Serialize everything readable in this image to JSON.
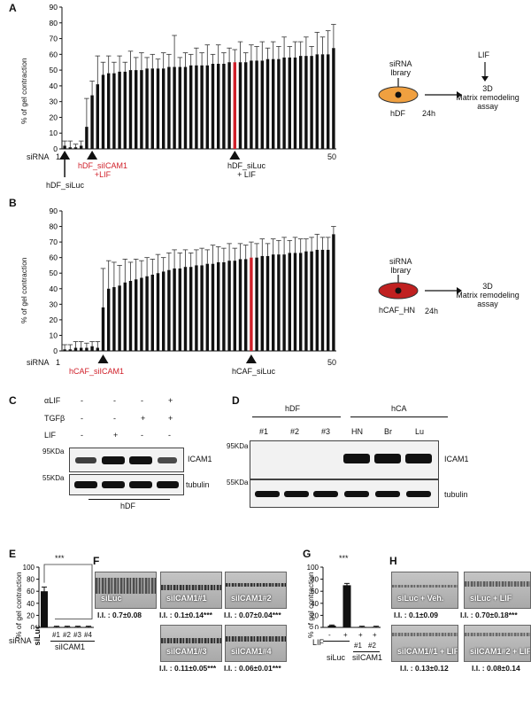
{
  "panel_letters": {
    "a": "A",
    "b": "B",
    "c": "C",
    "d": "D",
    "e": "E",
    "f": "F",
    "g": "G",
    "h": "H"
  },
  "ylabel": "% of gel contraction",
  "siRNA": "siRNA",
  "chart_data": [
    {
      "panel": "A",
      "type": "bar",
      "ylabel": "% of gel contraction",
      "ylim": [
        0,
        90
      ],
      "ticks": [
        "0",
        "10",
        "20",
        "30",
        "40",
        "50",
        "60",
        "70",
        "80",
        "90"
      ],
      "n_bars": 50,
      "x_start": "1",
      "x_end": "50",
      "values": [
        2,
        1,
        1,
        2,
        14,
        34,
        41,
        47,
        48,
        48,
        49,
        49,
        50,
        50,
        50,
        51,
        51,
        51,
        51,
        52,
        52,
        52,
        52,
        53,
        53,
        53,
        53,
        54,
        54,
        54,
        55,
        55,
        55,
        55,
        56,
        56,
        56,
        57,
        57,
        57,
        58,
        58,
        58,
        59,
        59,
        59,
        60,
        60,
        60,
        64
      ],
      "errors": [
        3,
        4,
        2,
        3,
        18,
        9,
        18,
        8,
        11,
        7,
        10,
        6,
        12,
        8,
        11,
        7,
        9,
        6,
        10,
        8,
        20,
        6,
        9,
        7,
        11,
        8,
        13,
        6,
        12,
        7,
        9,
        8,
        13,
        6,
        10,
        9,
        12,
        7,
        11,
        8,
        13,
        7,
        10,
        9,
        12,
        6,
        14,
        11,
        15,
        15
      ],
      "highlight_index": 31,
      "arrows": [
        {
          "label": "hDF_siLuc",
          "color": "#111"
        },
        {
          "label": "hDF_siICAM1\n+LIF",
          "color": "#d0202a"
        },
        {
          "label": "hDF_siLuc\n+ LIF",
          "color": "#111"
        }
      ]
    },
    {
      "panel": "B",
      "type": "bar",
      "ylabel": "% of gel contraction",
      "ylim": [
        0,
        90
      ],
      "ticks": [
        "0",
        "10",
        "20",
        "30",
        "40",
        "50",
        "60",
        "70",
        "80",
        "90"
      ],
      "n_bars": 50,
      "x_start": "1",
      "x_end": "50",
      "values": [
        1,
        1,
        2,
        2,
        2,
        3,
        2,
        28,
        40,
        41,
        42,
        44,
        45,
        46,
        47,
        48,
        49,
        50,
        51,
        52,
        53,
        53,
        54,
        54,
        55,
        55,
        56,
        56,
        57,
        57,
        58,
        58,
        59,
        59,
        60,
        60,
        61,
        61,
        62,
        62,
        62,
        63,
        63,
        63,
        64,
        64,
        65,
        65,
        65,
        75
      ],
      "errors": [
        3,
        3,
        4,
        4,
        3,
        3,
        4,
        25,
        18,
        16,
        13,
        15,
        12,
        13,
        11,
        12,
        10,
        12,
        9,
        11,
        12,
        10,
        11,
        9,
        10,
        11,
        9,
        12,
        10,
        9,
        11,
        8,
        10,
        9,
        10,
        9,
        11,
        8,
        10,
        9,
        11,
        8,
        10,
        9,
        8,
        9,
        10,
        8,
        8,
        5
      ],
      "highlight_index": 34,
      "arrows": [
        {
          "label": "hCAF_siICAM1",
          "color": "#d0202a"
        },
        {
          "label": "hCAF_siLuc",
          "color": "#111"
        }
      ]
    },
    {
      "panel": "E",
      "type": "bar",
      "ylabel": "% of gel contraction",
      "ylim": [
        0,
        100
      ],
      "ticks": [
        "0",
        "20",
        "40",
        "60",
        "80",
        "100"
      ],
      "categories": [
        "siLuc",
        "#1",
        "#2",
        "#3",
        "#4"
      ],
      "values": [
        60,
        1,
        1,
        1,
        1
      ],
      "errors": [
        7,
        1,
        1,
        1,
        1
      ],
      "group_label": "siICAM1",
      "significance": "***"
    },
    {
      "panel": "G",
      "type": "bar",
      "ylabel": "% of gel contraction",
      "ylim": [
        0,
        100
      ],
      "ticks": [
        "0",
        "20",
        "40",
        "60",
        "80",
        "100"
      ],
      "categories": [
        "-",
        "+",
        "#1 +",
        "#2 +"
      ],
      "values": [
        3,
        70,
        1,
        1
      ],
      "errors": [
        1,
        3,
        1,
        1
      ],
      "lif_row": [
        "-",
        "+",
        "+",
        "+"
      ],
      "lif_label": "LIF",
      "group_labels": [
        "siLuc",
        "siICAM1"
      ],
      "sub_labels": [
        "#1",
        "#2"
      ],
      "significance": "***"
    }
  ],
  "schematic_a": {
    "lif": "LIF",
    "sirna": "siRNA",
    "library": "lbrary",
    "cell": "hDF",
    "time": "24h",
    "assay1": "3D",
    "assay2": "Matrix remodeling",
    "assay3": "assay"
  },
  "schematic_b": {
    "sirna": "siRNA",
    "library": "lbrary",
    "cell": "hCAF_HN",
    "time": "24h",
    "assay1": "3D",
    "assay2": "Matrix remodeling",
    "assay3": "assay"
  },
  "blot_c": {
    "rows": [
      {
        "label": "αLIF",
        "vals": [
          "-",
          "-",
          "-",
          "+"
        ]
      },
      {
        "label": "TGFβ",
        "vals": [
          "-",
          "-",
          "+",
          "+"
        ]
      },
      {
        "label": "LIF",
        "vals": [
          "-",
          "+",
          "-",
          "-"
        ]
      }
    ],
    "kda1": "95KDa",
    "kda2": "55KDa",
    "band1": "ICAM1",
    "band2": "tubulin",
    "group": "hDF"
  },
  "blot_d": {
    "group1": "hDF",
    "group2": "hCA",
    "lanes": [
      "#1",
      "#2",
      "#3",
      "HN",
      "Br",
      "Lu"
    ],
    "kda1": "95KDa",
    "kda2": "55KDa",
    "band1": "ICAM1",
    "band2": "tubulin"
  },
  "panel_f": {
    "images": [
      {
        "label": "siLuc",
        "ii": "I.I. : 0.7±0.08"
      },
      {
        "label": "siICAM1#1",
        "ii": "I.I. : 0.1±0.14***"
      },
      {
        "label": "siICAM1#2",
        "ii": "I.I. : 0.07±0.04***"
      },
      {
        "label": "siICAM1#3",
        "ii": "I.I. : 0.11±0.05***"
      },
      {
        "label": "siICAM1#4",
        "ii": "I.I. : 0.06±0.01***"
      }
    ]
  },
  "panel_h": {
    "images": [
      {
        "label": "siLuc + Veh.",
        "ii": "I.I. : 0.1±0.09"
      },
      {
        "label": "siLuc + LIF",
        "ii": "I.I. : 0.70±0.18***"
      },
      {
        "label": "siICAM1#1 + LIF",
        "ii": "I.I. : 0.13±0.12"
      },
      {
        "label": "siICAM1#2 + LIF",
        "ii": "I.I. : 0.08±0.14"
      }
    ]
  },
  "colors": {
    "bar": "#111111",
    "highlight": "#d0202a",
    "cell_a": "#f0a040",
    "cell_b": "#c02020"
  }
}
